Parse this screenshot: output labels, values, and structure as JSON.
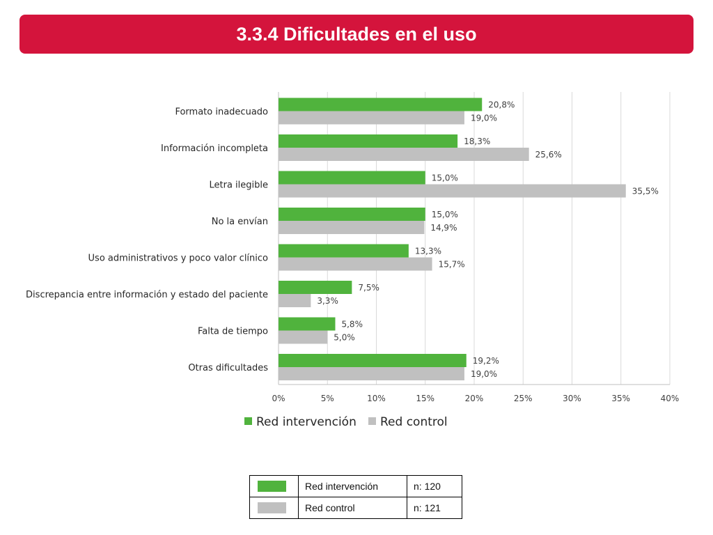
{
  "header": {
    "title": "3.3.4 Dificultades en el uso"
  },
  "colors": {
    "banner": "#d4143c",
    "intervencion": "#50b33d",
    "control": "#c0c0c0"
  },
  "chart_data": {
    "type": "bar",
    "orientation": "horizontal",
    "categories": [
      "Formato inadecuado",
      "Información incompleta",
      "Letra ilegible",
      "No la envían",
      "Uso administrativos y poco valor clínico",
      "Discrepancia entre información y estado del paciente",
      "Falta de tiempo",
      "Otras dificultades"
    ],
    "series": [
      {
        "name": "Red intervención",
        "color": "#50b33d",
        "values": [
          20.8,
          18.3,
          15.0,
          15.0,
          13.3,
          7.5,
          5.8,
          19.2
        ],
        "labels": [
          "20,8%",
          "18,3%",
          "15,0%",
          "15,0%",
          "13,3%",
          "7,5%",
          "5,8%",
          "19,2%"
        ]
      },
      {
        "name": "Red control",
        "color": "#c0c0c0",
        "values": [
          19.0,
          25.6,
          35.5,
          14.9,
          15.7,
          3.3,
          5.0,
          19.0
        ],
        "labels": [
          "19,0%",
          "25,6%",
          "35,5%",
          "14,9%",
          "15,7%",
          "3,3%",
          "5,0%",
          "19,0%"
        ]
      }
    ],
    "xlim": [
      0,
      40
    ],
    "ticks": [
      0,
      5,
      10,
      15,
      20,
      25,
      30,
      35,
      40
    ],
    "tick_labels": [
      "0%",
      "5%",
      "10%",
      "15%",
      "20%",
      "25%",
      "30%",
      "35%",
      "40%"
    ],
    "grid": true,
    "legend": {
      "placement": "bottom",
      "entries": [
        "Red intervención",
        "Red control"
      ]
    }
  },
  "sample_table": {
    "rows": [
      {
        "name": "Red intervención",
        "n": "n: 120",
        "color": "#50b33d"
      },
      {
        "name": "Red control",
        "n": "n: 121",
        "color": "#c0c0c0"
      }
    ]
  }
}
